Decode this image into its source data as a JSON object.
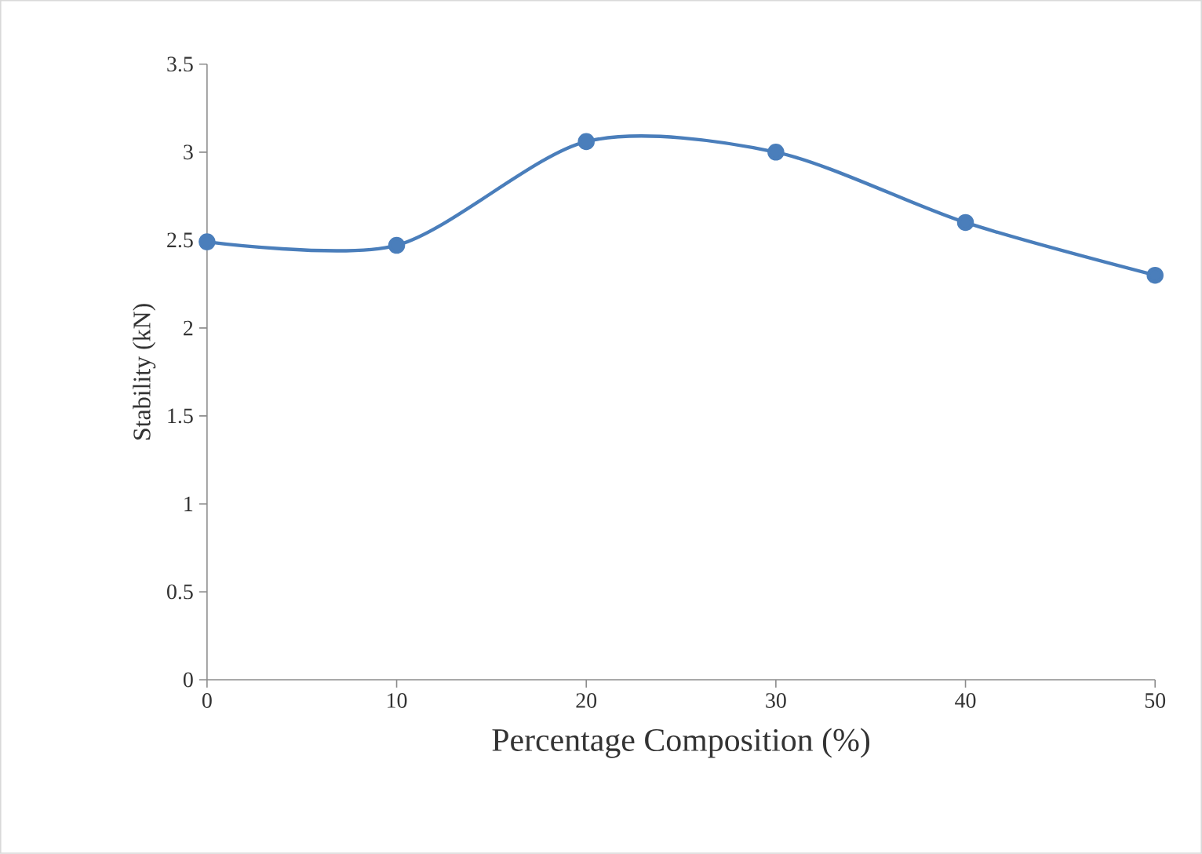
{
  "chart_data": {
    "type": "line",
    "xlabel": "Percentage Composition (%)",
    "ylabel": "Stability  (kN)",
    "x": [
      0,
      10,
      20,
      30,
      40,
      50
    ],
    "series": [
      {
        "color": "#4a7ebb",
        "values": [
          2.49,
          2.47,
          3.06,
          3.0,
          2.6,
          2.3
        ]
      }
    ],
    "xlim": [
      0,
      50
    ],
    "xticks": [
      0,
      10,
      20,
      30,
      40,
      50
    ],
    "ylim": [
      0,
      3.5
    ],
    "yticks": [
      0,
      0.5,
      1,
      1.5,
      2,
      2.5,
      3,
      3.5
    ],
    "grid": false,
    "marker": "circle",
    "line_style": "solid"
  }
}
